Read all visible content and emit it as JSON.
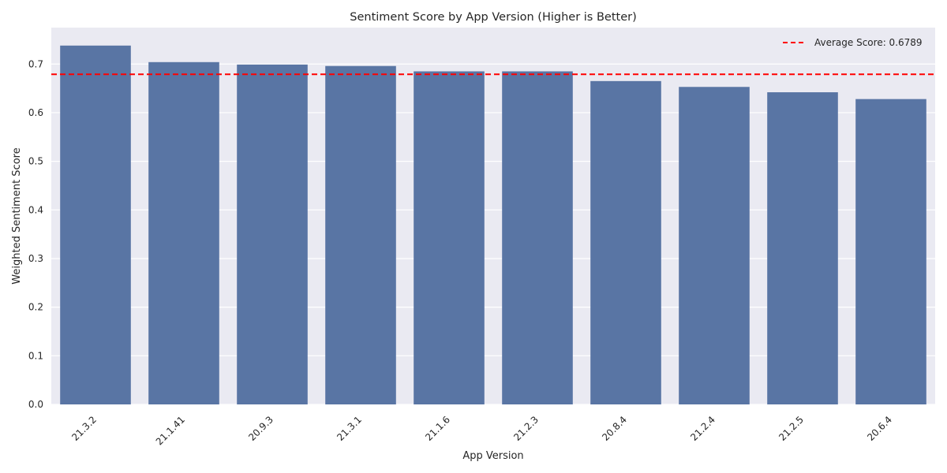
{
  "chart_data": {
    "type": "bar",
    "title": "Sentiment Score by App Version (Higher is Better)",
    "xlabel": "App Version",
    "ylabel": "Weighted Sentiment Score",
    "categories": [
      "21.3.2",
      "21.1.41",
      "20.9.3",
      "21.3.1",
      "21.1.6",
      "21.2.3",
      "20.8.4",
      "21.2.4",
      "21.2.5",
      "20.6.4"
    ],
    "values": [
      0.738,
      0.704,
      0.699,
      0.696,
      0.685,
      0.685,
      0.665,
      0.653,
      0.642,
      0.628
    ],
    "ylim": [
      0,
      0.775
    ],
    "yticks": [
      0.0,
      0.1,
      0.2,
      0.3,
      0.4,
      0.5,
      0.6,
      0.7
    ],
    "ytick_labels": [
      "0.0",
      "0.1",
      "0.2",
      "0.3",
      "0.4",
      "0.5",
      "0.6",
      "0.7"
    ],
    "reference_line": {
      "value": 0.6789,
      "label": "Average Score: 0.6789",
      "color": "#ff0000",
      "style": "dashed"
    },
    "grid": true,
    "legend_position": "top-right",
    "colors": {
      "bar": "#5975a4",
      "plot_background": "#eaeaf2",
      "grid": "#ffffff"
    }
  }
}
